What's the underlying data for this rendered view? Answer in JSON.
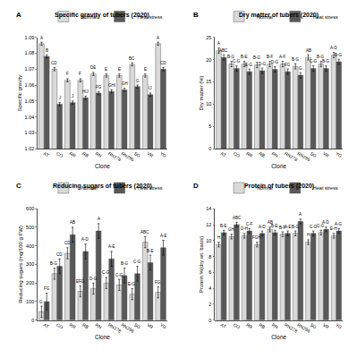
{
  "chart_data": [
    {
      "type": "bar",
      "panel": "A",
      "title": "Specific gravity of tubers (2020)",
      "x_label": "Clone",
      "y_label": "Specific gravity",
      "categories": [
        "AT",
        "CO",
        "RR",
        "RB",
        "RN",
        "RN278",
        "RN296",
        "SG",
        "VR",
        "YG"
      ],
      "series": [
        {
          "name": "Normal",
          "color": "#d9d9d9",
          "values": [
            1.086,
            1.07,
            1.063,
            1.063,
            1.067,
            1.066,
            1.066,
            1.073,
            1.066,
            1.086
          ],
          "errors": [
            0.001,
            0.001,
            0.001,
            0.001,
            0.001,
            0.001,
            0.001,
            0.001,
            0.001,
            0.001
          ],
          "letters": [
            "A",
            "CD",
            "F",
            "F",
            "DE",
            "E",
            "E",
            "BC",
            "E",
            "A"
          ]
        },
        {
          "name": "Heat stress",
          "color": "#595959",
          "values": [
            1.078,
            1.048,
            1.049,
            1.052,
            1.055,
            1.056,
            1.057,
            1.059,
            1.054,
            1.07
          ],
          "errors": [
            0.001,
            0.001,
            0.001,
            0.001,
            0.001,
            0.001,
            0.001,
            0.001,
            0.001,
            0.001
          ],
          "letters": [
            "B",
            "J",
            "J",
            "HIJ",
            "FG",
            "GHI",
            "GH",
            "G",
            "IJ",
            "CD"
          ]
        }
      ],
      "ylim": [
        1.02,
        1.09
      ],
      "yticks": [
        1.02,
        1.03,
        1.04,
        1.05,
        1.06,
        1.07,
        1.08,
        1.09
      ],
      "grid": false,
      "legend": "upper right"
    },
    {
      "type": "bar",
      "panel": "B",
      "title": "Dry matter of tubers (2020)",
      "x_label": "Clone",
      "y_label": "Dry matter (%)",
      "categories": [
        "AT",
        "CO",
        "RR",
        "RB",
        "RN",
        "RN278",
        "RN296",
        "SG",
        "VR",
        "YG"
      ],
      "series": [
        {
          "name": "Normal",
          "color": "#d9d9d9",
          "values": [
            22.0,
            19.0,
            19.0,
            18.8,
            19.0,
            19.0,
            18.5,
            20.5,
            19.0,
            21.0
          ],
          "errors": [
            0.6,
            0.6,
            0.6,
            0.6,
            0.6,
            0.6,
            0.6,
            0.6,
            0.6,
            0.6
          ],
          "letters": [
            "A",
            "B-G",
            "B-E",
            "B-G",
            "B-F",
            "A-F",
            "B-G",
            "AB",
            "B-G",
            "A-D"
          ]
        },
        {
          "name": "Heat stress",
          "color": "#595959",
          "values": [
            20.5,
            18.0,
            17.3,
            17.5,
            17.8,
            17.3,
            16.5,
            18.0,
            18.0,
            19.5
          ],
          "errors": [
            0.6,
            0.6,
            0.6,
            0.6,
            0.6,
            0.6,
            0.6,
            0.6,
            0.6,
            0.6
          ],
          "letters": [
            "ABC",
            "C-G",
            "E-G",
            "D-G",
            "D-G",
            "FG",
            "G",
            "C-G",
            "B-G",
            "B-G"
          ]
        }
      ],
      "ylim": [
        0,
        25
      ],
      "yticks": [
        0,
        5,
        10,
        15,
        20,
        25
      ],
      "grid": false,
      "legend": "upper right"
    },
    {
      "type": "bar",
      "panel": "C",
      "title": "Reducing sugars of tubers (2020)",
      "x_label": "Clone",
      "y_label": "Reducing sugars (mg/100 g FW)",
      "categories": [
        "AT",
        "CO",
        "RR",
        "RB",
        "RN",
        "RN278",
        "RN296",
        "SG",
        "VR",
        "YG"
      ],
      "series": [
        {
          "name": "Normal",
          "color": "#d9d9d9",
          "values": [
            45,
            250,
            360,
            155,
            170,
            200,
            190,
            140,
            420,
            150
          ],
          "errors": [
            30,
            30,
            30,
            30,
            30,
            30,
            30,
            30,
            30,
            30
          ],
          "letters": [
            "G",
            "B-G",
            "CD",
            "EFG",
            "D-G",
            "C-G",
            "C-G",
            "E-G",
            "ABC",
            "FG"
          ]
        },
        {
          "name": "Heat stress",
          "color": "#595959",
          "values": [
            100,
            290,
            460,
            370,
            480,
            330,
            240,
            250,
            310,
            390
          ],
          "errors": [
            45,
            40,
            40,
            40,
            40,
            40,
            40,
            40,
            40,
            40
          ],
          "letters": [
            "FG",
            "CD",
            "AB",
            "A-D",
            "A",
            "A-E",
            "B-G",
            "C-G",
            "B-E",
            "A-E"
          ]
        }
      ],
      "ylim": [
        0,
        600
      ],
      "yticks": [
        0,
        100,
        200,
        300,
        400,
        500,
        600
      ],
      "grid": false,
      "legend": "upper right"
    },
    {
      "type": "bar",
      "panel": "D",
      "title": "Protein of tubers (2020)",
      "x_label": "Clone",
      "y_label": "Protein %(dry wt. basis)",
      "categories": [
        "AT",
        "CO",
        "RR",
        "RB",
        "RN",
        "RN278",
        "RN296",
        "SG",
        "VR",
        "YG"
      ],
      "series": [
        {
          "name": "Normal",
          "color": "#d9d9d9",
          "values": [
            9.5,
            10.5,
            10.6,
            9.5,
            11.4,
            10.8,
            10.9,
            9.8,
            11.0,
            10.6
          ],
          "errors": [
            0.3,
            0.3,
            0.3,
            0.3,
            0.3,
            0.3,
            0.3,
            0.3,
            0.3,
            0.3
          ],
          "letters": [
            "H",
            "GH",
            "D-H",
            "FGH",
            "AB",
            "B-F",
            "B-G",
            "H",
            "C-G",
            "E-H"
          ]
        },
        {
          "name": "Heat stress",
          "color": "#595959",
          "values": [
            11.0,
            12.0,
            11.2,
            10.9,
            11.0,
            10.9,
            12.4,
            10.9,
            11.4,
            11.2
          ],
          "errors": [
            0.3,
            0.3,
            0.3,
            0.3,
            0.3,
            0.3,
            0.3,
            0.3,
            0.3,
            0.3
          ],
          "letters": [
            "B-E",
            "ABC",
            "C-F",
            "A-D",
            "B-E",
            "A-E",
            "A",
            "C-G",
            "A-D",
            "A-G"
          ]
        }
      ],
      "ylim": [
        0,
        14
      ],
      "yticks": [
        0,
        2,
        4,
        6,
        8,
        10,
        12,
        14
      ],
      "grid": false,
      "legend": "upper right"
    }
  ]
}
